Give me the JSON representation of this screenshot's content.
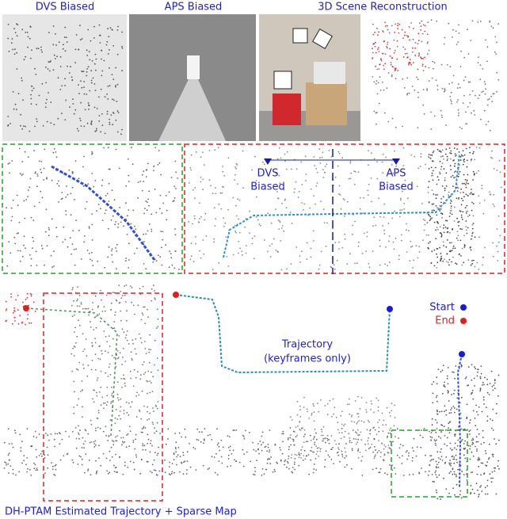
{
  "header": {
    "panels": [
      "DVS Biased",
      "APS Biased",
      "3D Scene Reconstruction"
    ]
  },
  "middle": {
    "dvs_label": [
      "DVS",
      "Biased"
    ],
    "aps_label": [
      "APS",
      "Biased"
    ]
  },
  "bottom": {
    "trajectory_label": [
      "Trajectory",
      "(keyframes only)"
    ],
    "legend": {
      "start": "Start",
      "end": "End"
    },
    "caption": "DH-PTAM Estimated Trajectory + Sparse Map"
  }
}
